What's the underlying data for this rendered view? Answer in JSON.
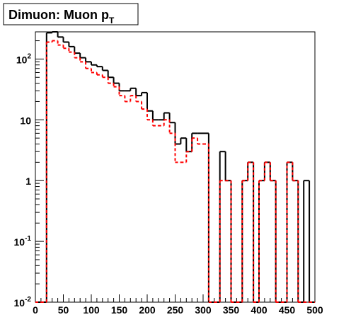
{
  "chart_data": {
    "type": "histogram",
    "title": "Dimuon: Muon p",
    "title_subscript": "T",
    "bins": [
      0,
      10,
      20,
      30,
      40,
      50,
      60,
      70,
      80,
      90,
      100,
      110,
      120,
      130,
      140,
      150,
      160,
      170,
      180,
      190,
      200,
      210,
      220,
      230,
      240,
      250,
      260,
      270,
      280,
      290,
      300,
      310,
      320,
      330,
      340,
      350,
      360,
      370,
      380,
      390,
      400,
      410,
      420,
      430,
      440,
      450,
      460,
      470,
      480,
      490,
      500
    ],
    "series": [
      {
        "color": "#000000",
        "dash": false,
        "values": [
          0,
          0,
          270,
          280,
          230,
          190,
          160,
          125,
          105,
          90,
          80,
          75,
          65,
          50,
          40,
          30,
          30,
          33,
          25,
          28,
          14,
          10,
          10,
          13,
          9,
          4,
          5,
          3,
          6,
          6,
          6,
          0,
          0,
          3,
          1,
          0,
          0,
          1,
          2,
          0,
          1,
          2,
          1,
          0,
          0,
          2,
          1,
          0,
          1,
          0
        ]
      },
      {
        "color": "#ff0000",
        "dash": true,
        "values": [
          0,
          0,
          190,
          200,
          170,
          150,
          130,
          105,
          90,
          70,
          60,
          55,
          50,
          40,
          35,
          25,
          20,
          25,
          20,
          15,
          10,
          8,
          8,
          10,
          6,
          2,
          2,
          3,
          5,
          4,
          4,
          0,
          0,
          1,
          1,
          0,
          0,
          1,
          2,
          0,
          1,
          2,
          1,
          0,
          0,
          2,
          1,
          0,
          0,
          0
        ]
      }
    ],
    "xlim": [
      0,
      500
    ],
    "xticks": [
      0,
      50,
      100,
      150,
      200,
      250,
      300,
      350,
      400,
      450,
      500
    ],
    "ylim": [
      0.01,
      280
    ],
    "log_y": true,
    "yticks": [
      {
        "value": 0.01,
        "label": "10",
        "exponent": "-2"
      },
      {
        "value": 0.1,
        "label": "10",
        "exponent": "-1"
      },
      1,
      10,
      {
        "value": 100,
        "label": "10",
        "exponent": "2"
      }
    ]
  }
}
